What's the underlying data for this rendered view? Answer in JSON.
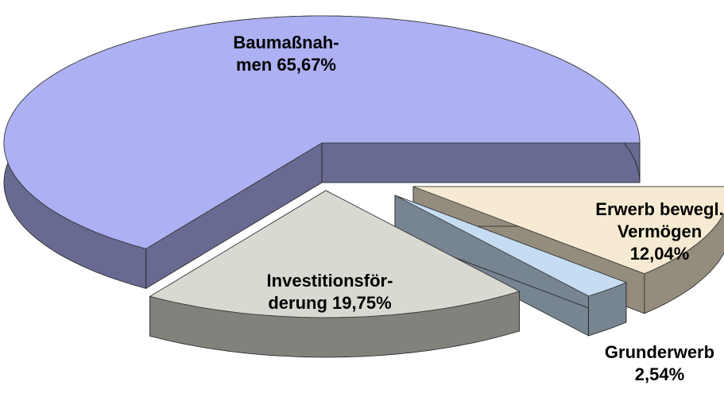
{
  "chart_data": {
    "type": "pie",
    "categories": [
      "Baumaßnah-men",
      "Investitionsför-derung",
      "Grunderwerb",
      "Erwerb bewegl. Vermögen"
    ],
    "values": [
      65.67,
      19.75,
      2.54,
      12.04
    ],
    "value_labels": [
      "65,67%",
      "19,75%",
      "2,54%",
      "12,04%"
    ],
    "colors": [
      "#adb0f2",
      "#d9d9d1",
      "#c6dcf2",
      "#f6ebd2"
    ]
  }
}
